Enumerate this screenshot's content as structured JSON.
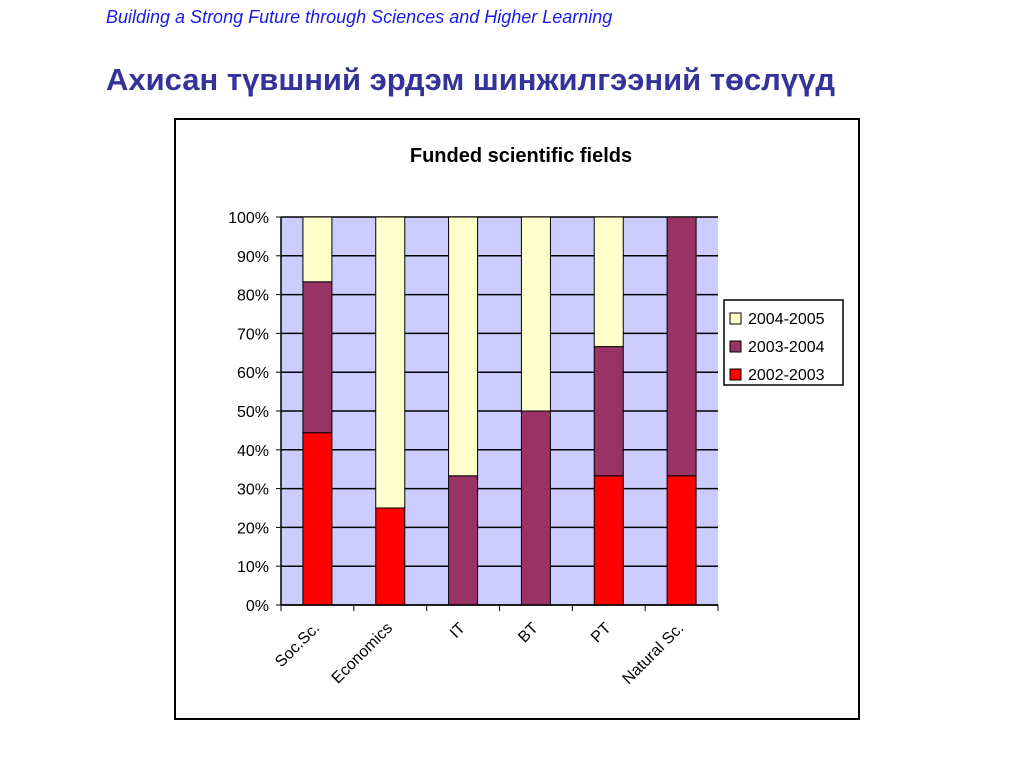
{
  "slide": {
    "tagline": "Building a Strong Future through Sciences and Higher Learning",
    "title": "Ахисан түвшний эрдэм шинжилгээний төслүүд"
  },
  "chart_data": {
    "type": "bar",
    "stacked": true,
    "percent_stacked": true,
    "title": "Funded scientific fields",
    "categories": [
      "Soc.Sc.",
      "Economics",
      "IT",
      "BT",
      "PT",
      "Natural Sc."
    ],
    "series": [
      {
        "name": "2002-2003",
        "color": "#ff0000",
        "values": [
          44.4,
          25,
          0,
          0,
          33.3,
          33.3
        ]
      },
      {
        "name": "2003-2004",
        "color": "#993366",
        "values": [
          38.9,
          0,
          33.3,
          50,
          33.3,
          66.7
        ]
      },
      {
        "name": "2004-2005",
        "color": "#ffffcc",
        "values": [
          16.7,
          75,
          66.7,
          50,
          33.4,
          0
        ]
      }
    ],
    "legend_order": [
      "2004-2005",
      "2003-2004",
      "2002-2003"
    ],
    "ylim": [
      0,
      100
    ],
    "yticks": [
      "0%",
      "10%",
      "20%",
      "30%",
      "40%",
      "50%",
      "60%",
      "70%",
      "80%",
      "90%",
      "100%"
    ],
    "plot_background": "#ccccff",
    "grid": true,
    "legend_position": "right"
  }
}
